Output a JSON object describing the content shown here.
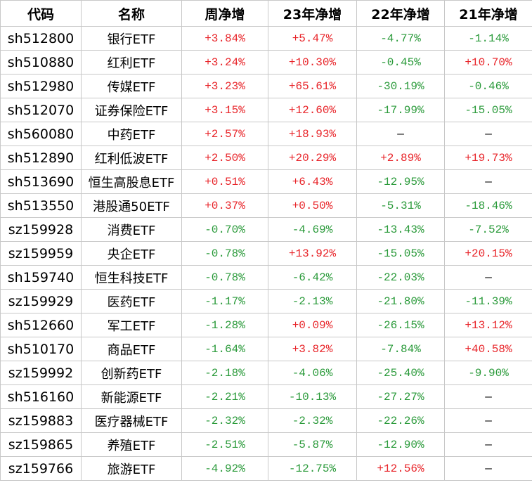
{
  "table": {
    "header": [
      "代码",
      "名称",
      "周净增",
      "23年净增",
      "22年净增",
      "21年净增"
    ],
    "rows": [
      [
        "sh512800",
        "银行ETF",
        "+3.84%",
        "+5.47%",
        "-4.77%",
        "-1.14%"
      ],
      [
        "sh510880",
        "红利ETF",
        "+3.24%",
        "+10.30%",
        "-0.45%",
        "+10.70%"
      ],
      [
        "sh512980",
        "传媒ETF",
        "+3.23%",
        "+65.61%",
        "-30.19%",
        "-0.46%"
      ],
      [
        "sh512070",
        "证券保险ETF",
        "+3.15%",
        "+12.60%",
        "-17.99%",
        "-15.05%"
      ],
      [
        "sh560080",
        "中药ETF",
        "+2.57%",
        "+18.93%",
        "—",
        "—"
      ],
      [
        "sh512890",
        "红利低波ETF",
        "+2.50%",
        "+20.29%",
        "+2.89%",
        "+19.73%"
      ],
      [
        "sh513690",
        "恒生高股息ETF",
        "+0.51%",
        "+6.43%",
        "-12.95%",
        "—"
      ],
      [
        "sh513550",
        "港股通50ETF",
        "+0.37%",
        "+0.50%",
        "-5.31%",
        "-18.46%"
      ],
      [
        "sz159928",
        "消费ETF",
        "-0.70%",
        "-4.69%",
        "-13.43%",
        "-7.52%"
      ],
      [
        "sz159959",
        "央企ETF",
        "-0.78%",
        "+13.92%",
        "-15.05%",
        "+20.15%"
      ],
      [
        "sh159740",
        "恒生科技ETF",
        "-0.78%",
        "-6.42%",
        "-22.03%",
        "—"
      ],
      [
        "sz159929",
        "医药ETF",
        "-1.17%",
        "-2.13%",
        "-21.80%",
        "-11.39%"
      ],
      [
        "sh512660",
        "军工ETF",
        "-1.28%",
        "+0.09%",
        "-26.15%",
        "+13.12%"
      ],
      [
        "sh510170",
        "商品ETF",
        "-1.64%",
        "+3.82%",
        "-7.84%",
        "+40.58%"
      ],
      [
        "sz159992",
        "创新药ETF",
        "-2.18%",
        "-4.06%",
        "-25.40%",
        "-9.90%"
      ],
      [
        "sh516160",
        "新能源ETF",
        "-2.21%",
        "-10.13%",
        "-27.27%",
        "—"
      ],
      [
        "sz159883",
        "医疗器械ETF",
        "-2.32%",
        "-2.32%",
        "-22.26%",
        "—"
      ],
      [
        "sz159865",
        "养殖ETF",
        "-2.51%",
        "-5.87%",
        "-12.90%",
        "—"
      ],
      [
        "sz159766",
        "旅游ETF",
        "-4.92%",
        "-12.75%",
        "+12.56%",
        "—"
      ]
    ]
  }
}
